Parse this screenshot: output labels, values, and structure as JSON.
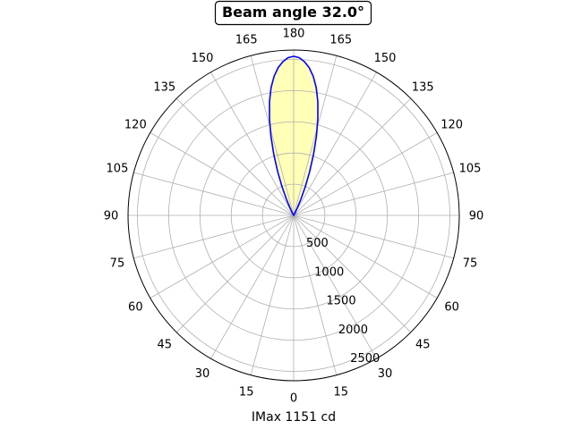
{
  "chart_data": {
    "type": "line",
    "projection": "polar",
    "title": "Beam angle 32.0°",
    "xlabel": "IMax 1151 cd",
    "angular_ticks": [
      "180",
      "165",
      "150",
      "135",
      "120",
      "105",
      "90",
      "75",
      "60",
      "45",
      "30",
      "15",
      "0",
      "15",
      "30",
      "45",
      "60",
      "75",
      "90",
      "105",
      "120",
      "135",
      "150",
      "165"
    ],
    "radial_ticks": [
      500,
      1000,
      1500,
      2000,
      2500
    ],
    "rlim": [
      0,
      2650
    ],
    "grid": true,
    "series": [
      {
        "theta_deg": [
          0,
          2,
          4,
          6,
          8,
          10,
          12,
          14,
          16,
          18,
          20,
          22,
          24,
          26,
          28,
          30
        ],
        "r": [
          2550,
          2530,
          2470,
          2380,
          2250,
          2080,
          1860,
          1600,
          1320,
          1030,
          750,
          500,
          290,
          140,
          45,
          0
        ],
        "color": "#0000ff",
        "fill": "#ffffb8"
      }
    ]
  }
}
